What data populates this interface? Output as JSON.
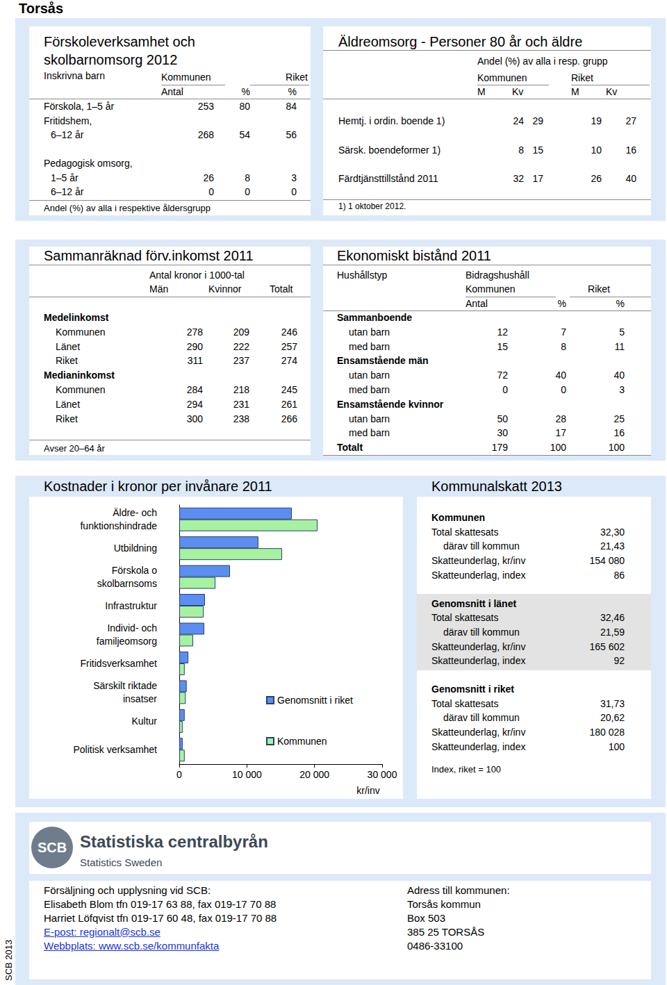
{
  "page_title": "Torsås",
  "preschool": {
    "title_lines": [
      "Förskoleverksamhet och",
      "skolbarnomsorg 2012"
    ],
    "row_header": "Inskrivna barn",
    "col_groups": [
      "Kommunen",
      "Riket"
    ],
    "columns": [
      "Antal",
      "%",
      "%"
    ],
    "rows": [
      {
        "label": "Förskola, 1–5 år",
        "values": [
          "253",
          "80",
          "84"
        ]
      },
      {
        "label": "Fritidshem,",
        "rows": [
          {
            "label": "6–12 år",
            "values": [
              "268",
              "54",
              "56"
            ]
          }
        ]
      },
      {
        "label": "Pedagogisk omsorg,",
        "rows": [
          {
            "label": "1–5 år",
            "values": [
              "26",
              "8",
              "3"
            ]
          },
          {
            "label": "6–12 år",
            "values": [
              "0",
              "0",
              "0"
            ]
          }
        ]
      }
    ],
    "note": "Andel (%) av alla i respektive åldersgrupp"
  },
  "elderly": {
    "title": "Äldreomsorg - Personer 80 år och äldre",
    "subtitle": "Andel (%) av alla i resp. grupp",
    "col_groups": [
      "Kommunen",
      "Riket"
    ],
    "columns": [
      "M",
      "Kv",
      "M",
      "Kv"
    ],
    "rows": [
      {
        "label": "Hemtj. i ordin. boende 1)",
        "values": [
          "24",
          "29",
          "19",
          "27"
        ]
      },
      {
        "label": "Särsk. boendeformer 1)",
        "values": [
          "8",
          "15",
          "10",
          "16"
        ]
      },
      {
        "label": "Färdtjänsttillstånd 2011",
        "values": [
          "32",
          "17",
          "26",
          "40"
        ]
      }
    ],
    "note": "1) 1 oktober 2012."
  },
  "income": {
    "title": "Sammanräknad förv.inkomst 2011",
    "unit": "Antal kronor i 1000-tal",
    "columns": [
      "Män",
      "Kvinnor",
      "Totalt"
    ],
    "sections": [
      {
        "label": "Medelinkomst",
        "rows": [
          {
            "label": "Kommunen",
            "values": [
              "278",
              "209",
              "246"
            ]
          },
          {
            "label": "Länet",
            "values": [
              "290",
              "222",
              "257"
            ]
          },
          {
            "label": "Riket",
            "values": [
              "311",
              "237",
              "274"
            ]
          }
        ]
      },
      {
        "label": "Medianinkomst",
        "rows": [
          {
            "label": "Kommunen",
            "values": [
              "284",
              "218",
              "245"
            ]
          },
          {
            "label": "Länet",
            "values": [
              "294",
              "231",
              "261"
            ]
          },
          {
            "label": "Riket",
            "values": [
              "300",
              "238",
              "266"
            ]
          }
        ]
      }
    ],
    "note": "Avser 20–64 år"
  },
  "welfare": {
    "title": "Ekonomiskt bistånd 2011",
    "row_header": "Hushållstyp",
    "unit": "Bidragshushåll",
    "col_groups": [
      "Kommunen",
      "Riket"
    ],
    "columns": [
      "Antal",
      "%",
      "%"
    ],
    "sections": [
      {
        "label": "Sammanboende",
        "rows": [
          {
            "label": "utan barn",
            "values": [
              "12",
              "7",
              "5"
            ]
          },
          {
            "label": "med barn",
            "values": [
              "15",
              "8",
              "11"
            ]
          }
        ]
      },
      {
        "label": "Ensamstående män",
        "rows": [
          {
            "label": "utan barn",
            "values": [
              "72",
              "40",
              "40"
            ]
          },
          {
            "label": "med barn",
            "values": [
              "0",
              "0",
              "3"
            ]
          }
        ]
      },
      {
        "label": "Ensamstående kvinnor",
        "rows": [
          {
            "label": "utan barn",
            "values": [
              "50",
              "28",
              "25"
            ]
          },
          {
            "label": "med barn",
            "values": [
              "30",
              "17",
              "16"
            ]
          }
        ]
      }
    ],
    "total": {
      "label": "Totalt",
      "values": [
        "179",
        "100",
        "100"
      ]
    }
  },
  "tax": {
    "title": "Kommunalskatt 2013",
    "sections": [
      {
        "label": "Kommunen",
        "highlight": false,
        "rows": [
          {
            "label": "Total skattesats",
            "value": "32,30"
          },
          {
            "label": "därav till kommun",
            "value": "21,43",
            "sub": true
          },
          {
            "label": "Skatteunderlag, kr/inv",
            "value": "154 080"
          },
          {
            "label": "Skatteunderlag, index",
            "value": "86"
          }
        ]
      },
      {
        "label": "Genomsnitt i länet",
        "highlight": true,
        "rows": [
          {
            "label": "Total skattesats",
            "value": "32,46"
          },
          {
            "label": "därav till kommun",
            "value": "21,59",
            "sub": true
          },
          {
            "label": "Skatteunderlag, kr/inv",
            "value": "165 602"
          },
          {
            "label": "Skatteunderlag, index",
            "value": "92"
          }
        ]
      },
      {
        "label": "Genomsnitt i riket",
        "highlight": false,
        "rows": [
          {
            "label": "Total skattesats",
            "value": "31,73"
          },
          {
            "label": "därav till kommun",
            "value": "20,62",
            "sub": true
          },
          {
            "label": "Skatteunderlag, kr/inv",
            "value": "180 028"
          },
          {
            "label": "Skatteunderlag, index",
            "value": "100"
          }
        ]
      }
    ],
    "note": "Index, riket = 100"
  },
  "logo": {
    "mark": "SCB",
    "name": "Statistiska centralbyrån",
    "name_en": "Statistics Sweden"
  },
  "contact": {
    "lines": [
      "Försäljning och upplysning vid SCB:",
      "Elisabeth Blom tfn 019-17 63 88, fax 019-17 70 88",
      "Harriet Löfqvist tfn 019-17 60 48, fax 019-17 70 88"
    ],
    "links": [
      "E-post: regionalt@scb.se",
      "Webbplats: www.scb.se/kommunfakta"
    ]
  },
  "address": {
    "lines": [
      "Adress till kommunen:",
      "Torsås kommun",
      "Box 503",
      "385 25  TORSÅS",
      "0486-33100"
    ]
  },
  "side_note": "SCB 2013",
  "chart_data": {
    "type": "bar",
    "orientation": "horizontal",
    "title": "Kostnader i kronor per invånare 2011",
    "xlabel": "kr/inv",
    "categories": [
      "Äldre- och\nfunktionshindrade",
      "Utbildning",
      "Förskola o\nskolbarnsoms",
      "Infrastruktur",
      "Individ- och\nfamiljeomsorg",
      "Fritidsverksamhet",
      "Särskilt riktade\ninsatser",
      "Kultur",
      "Politisk verksamhet"
    ],
    "series": [
      {
        "name": "Genomsnitt i riket",
        "color": "#5b8ef0",
        "values": [
          16650,
          11700,
          7500,
          3800,
          3700,
          1350,
          1100,
          800,
          500
        ]
      },
      {
        "name": "Kommunen",
        "color": "#a6f2a0",
        "values": [
          20450,
          15200,
          5350,
          3600,
          2050,
          800,
          950,
          500,
          800
        ]
      }
    ],
    "xlim": [
      0,
      30000
    ],
    "xticks": [
      0,
      {
        "value": 10000,
        "label": "10 000"
      },
      {
        "value": 20000,
        "label": "20 000"
      },
      {
        "value": 30000,
        "label": "30 000"
      }
    ],
    "grid": false,
    "legend": "right"
  }
}
